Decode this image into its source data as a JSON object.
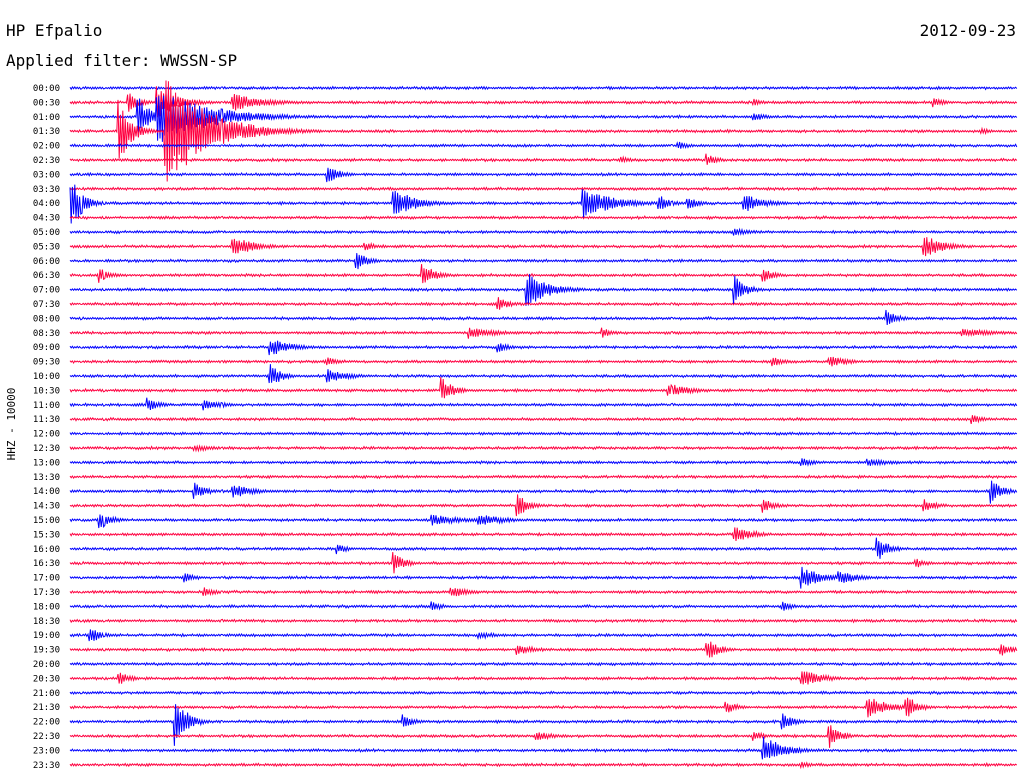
{
  "header": {
    "station": "HP Efpalio",
    "filter": "Applied filter: WWSSN-SP",
    "date": "2012-09-23"
  },
  "axis": {
    "label": "HHZ - 10000"
  },
  "colors": {
    "trace_a": "#0000ff",
    "trace_b": "#ff0040",
    "text": "#000000",
    "background": "#ffffff"
  },
  "chart_data": {
    "type": "line",
    "title": "HP Efpalio",
    "subtitle": "Applied filter: WWSSN-SP",
    "ylabel": "HHZ - 10000",
    "date": "2012-09-23",
    "row_colors": [
      "#0000ff",
      "#ff0040"
    ],
    "rows": [
      "00:00",
      "00:30",
      "01:00",
      "01:30",
      "02:00",
      "02:30",
      "03:00",
      "03:30",
      "04:00",
      "04:30",
      "05:00",
      "05:30",
      "06:00",
      "06:30",
      "07:00",
      "07:30",
      "08:00",
      "08:30",
      "09:00",
      "09:30",
      "10:00",
      "10:30",
      "11:00",
      "11:30",
      "12:00",
      "12:30",
      "13:00",
      "13:30",
      "14:00",
      "14:30",
      "15:00",
      "15:30",
      "16:00",
      "16:30",
      "17:00",
      "17:30",
      "18:00",
      "18:30",
      "19:00",
      "19:30",
      "20:00",
      "20:30",
      "21:00",
      "21:30",
      "22:00",
      "22:30",
      "23:00",
      "23:30"
    ],
    "events": [
      {
        "row": 1,
        "x": 0.06,
        "amp": 12,
        "dur": 0.01
      },
      {
        "row": 1,
        "x": 0.09,
        "amp": 18,
        "dur": 0.02
      },
      {
        "row": 1,
        "x": 0.17,
        "amp": 10,
        "dur": 0.03
      },
      {
        "row": 1,
        "x": 0.72,
        "amp": 4,
        "dur": 0.01
      },
      {
        "row": 1,
        "x": 0.91,
        "amp": 5,
        "dur": 0.01
      },
      {
        "row": 2,
        "x": 0.07,
        "amp": 25,
        "dur": 0.01
      },
      {
        "row": 2,
        "x": 0.09,
        "amp": 30,
        "dur": 0.05
      },
      {
        "row": 2,
        "x": 0.72,
        "amp": 6,
        "dur": 0.01
      },
      {
        "row": 3,
        "x": 0.05,
        "amp": 40,
        "dur": 0.01
      },
      {
        "row": 3,
        "x": 0.1,
        "amp": 60,
        "dur": 0.04
      },
      {
        "row": 3,
        "x": 0.96,
        "amp": 4,
        "dur": 0.01
      },
      {
        "row": 4,
        "x": 0.64,
        "amp": 5,
        "dur": 0.01
      },
      {
        "row": 5,
        "x": 0.67,
        "amp": 7,
        "dur": 0.01
      },
      {
        "row": 5,
        "x": 0.58,
        "amp": 4,
        "dur": 0.01
      },
      {
        "row": 6,
        "x": 0.27,
        "amp": 12,
        "dur": 0.01
      },
      {
        "row": 8,
        "x": 0.0,
        "amp": 30,
        "dur": 0.01
      },
      {
        "row": 8,
        "x": 0.34,
        "amp": 18,
        "dur": 0.02
      },
      {
        "row": 8,
        "x": 0.54,
        "amp": 16,
        "dur": 0.03
      },
      {
        "row": 8,
        "x": 0.62,
        "amp": 10,
        "dur": 0.01
      },
      {
        "row": 8,
        "x": 0.65,
        "amp": 8,
        "dur": 0.01
      },
      {
        "row": 8,
        "x": 0.71,
        "amp": 10,
        "dur": 0.02
      },
      {
        "row": 10,
        "x": 0.7,
        "amp": 4,
        "dur": 0.02
      },
      {
        "row": 11,
        "x": 0.17,
        "amp": 12,
        "dur": 0.02
      },
      {
        "row": 11,
        "x": 0.31,
        "amp": 5,
        "dur": 0.01
      },
      {
        "row": 11,
        "x": 0.9,
        "amp": 12,
        "dur": 0.02
      },
      {
        "row": 12,
        "x": 0.3,
        "amp": 12,
        "dur": 0.01
      },
      {
        "row": 13,
        "x": 0.03,
        "amp": 8,
        "dur": 0.01
      },
      {
        "row": 13,
        "x": 0.37,
        "amp": 16,
        "dur": 0.01
      },
      {
        "row": 13,
        "x": 0.73,
        "amp": 8,
        "dur": 0.01
      },
      {
        "row": 14,
        "x": 0.48,
        "amp": 20,
        "dur": 0.02
      },
      {
        "row": 14,
        "x": 0.7,
        "amp": 16,
        "dur": 0.01
      },
      {
        "row": 15,
        "x": 0.45,
        "amp": 8,
        "dur": 0.01
      },
      {
        "row": 16,
        "x": 0.86,
        "amp": 10,
        "dur": 0.01
      },
      {
        "row": 17,
        "x": 0.42,
        "amp": 6,
        "dur": 0.03
      },
      {
        "row": 17,
        "x": 0.56,
        "amp": 6,
        "dur": 0.01
      },
      {
        "row": 17,
        "x": 0.94,
        "amp": 4,
        "dur": 0.04
      },
      {
        "row": 18,
        "x": 0.21,
        "amp": 10,
        "dur": 0.02
      },
      {
        "row": 18,
        "x": 0.45,
        "amp": 6,
        "dur": 0.01
      },
      {
        "row": 19,
        "x": 0.27,
        "amp": 6,
        "dur": 0.01
      },
      {
        "row": 19,
        "x": 0.74,
        "amp": 6,
        "dur": 0.01
      },
      {
        "row": 19,
        "x": 0.8,
        "amp": 6,
        "dur": 0.02
      },
      {
        "row": 20,
        "x": 0.21,
        "amp": 14,
        "dur": 0.01
      },
      {
        "row": 20,
        "x": 0.27,
        "amp": 8,
        "dur": 0.02
      },
      {
        "row": 21,
        "x": 0.39,
        "amp": 16,
        "dur": 0.01
      },
      {
        "row": 21,
        "x": 0.63,
        "amp": 8,
        "dur": 0.02
      },
      {
        "row": 22,
        "x": 0.08,
        "amp": 8,
        "dur": 0.01
      },
      {
        "row": 22,
        "x": 0.14,
        "amp": 6,
        "dur": 0.02
      },
      {
        "row": 23,
        "x": 0.95,
        "amp": 6,
        "dur": 0.01
      },
      {
        "row": 25,
        "x": 0.13,
        "amp": 4,
        "dur": 0.02
      },
      {
        "row": 26,
        "x": 0.77,
        "amp": 6,
        "dur": 0.01
      },
      {
        "row": 26,
        "x": 0.84,
        "amp": 4,
        "dur": 0.03
      },
      {
        "row": 28,
        "x": 0.13,
        "amp": 10,
        "dur": 0.01
      },
      {
        "row": 28,
        "x": 0.17,
        "amp": 8,
        "dur": 0.02
      },
      {
        "row": 28,
        "x": 0.97,
        "amp": 14,
        "dur": 0.01
      },
      {
        "row": 29,
        "x": 0.47,
        "amp": 14,
        "dur": 0.01
      },
      {
        "row": 29,
        "x": 0.73,
        "amp": 8,
        "dur": 0.01
      },
      {
        "row": 29,
        "x": 0.9,
        "amp": 8,
        "dur": 0.01
      },
      {
        "row": 30,
        "x": 0.03,
        "amp": 12,
        "dur": 0.01
      },
      {
        "row": 30,
        "x": 0.38,
        "amp": 6,
        "dur": 0.03
      },
      {
        "row": 30,
        "x": 0.43,
        "amp": 6,
        "dur": 0.03
      },
      {
        "row": 31,
        "x": 0.7,
        "amp": 8,
        "dur": 0.02
      },
      {
        "row": 32,
        "x": 0.28,
        "amp": 6,
        "dur": 0.01
      },
      {
        "row": 32,
        "x": 0.85,
        "amp": 16,
        "dur": 0.01
      },
      {
        "row": 33,
        "x": 0.34,
        "amp": 12,
        "dur": 0.01
      },
      {
        "row": 33,
        "x": 0.89,
        "amp": 6,
        "dur": 0.01
      },
      {
        "row": 34,
        "x": 0.12,
        "amp": 6,
        "dur": 0.01
      },
      {
        "row": 34,
        "x": 0.77,
        "amp": 12,
        "dur": 0.02
      },
      {
        "row": 34,
        "x": 0.81,
        "amp": 8,
        "dur": 0.02
      },
      {
        "row": 35,
        "x": 0.14,
        "amp": 6,
        "dur": 0.01
      },
      {
        "row": 35,
        "x": 0.4,
        "amp": 6,
        "dur": 0.02
      },
      {
        "row": 36,
        "x": 0.38,
        "amp": 6,
        "dur": 0.01
      },
      {
        "row": 36,
        "x": 0.75,
        "amp": 6,
        "dur": 0.01
      },
      {
        "row": 38,
        "x": 0.02,
        "amp": 10,
        "dur": 0.01
      },
      {
        "row": 38,
        "x": 0.43,
        "amp": 4,
        "dur": 0.02
      },
      {
        "row": 39,
        "x": 0.47,
        "amp": 6,
        "dur": 0.02
      },
      {
        "row": 39,
        "x": 0.67,
        "amp": 14,
        "dur": 0.01
      },
      {
        "row": 39,
        "x": 0.98,
        "amp": 8,
        "dur": 0.01
      },
      {
        "row": 41,
        "x": 0.05,
        "amp": 8,
        "dur": 0.01
      },
      {
        "row": 41,
        "x": 0.77,
        "amp": 10,
        "dur": 0.02
      },
      {
        "row": 43,
        "x": 0.69,
        "amp": 8,
        "dur": 0.01
      },
      {
        "row": 43,
        "x": 0.84,
        "amp": 12,
        "dur": 0.02
      },
      {
        "row": 43,
        "x": 0.88,
        "amp": 16,
        "dur": 0.01
      },
      {
        "row": 44,
        "x": 0.11,
        "amp": 30,
        "dur": 0.01
      },
      {
        "row": 44,
        "x": 0.35,
        "amp": 8,
        "dur": 0.01
      },
      {
        "row": 44,
        "x": 0.75,
        "amp": 10,
        "dur": 0.01
      },
      {
        "row": 45,
        "x": 0.49,
        "amp": 5,
        "dur": 0.02
      },
      {
        "row": 45,
        "x": 0.72,
        "amp": 6,
        "dur": 0.01
      },
      {
        "row": 45,
        "x": 0.8,
        "amp": 14,
        "dur": 0.01
      },
      {
        "row": 46,
        "x": 0.73,
        "amp": 16,
        "dur": 0.02
      },
      {
        "row": 47,
        "x": 0.77,
        "amp": 4,
        "dur": 0.01
      }
    ]
  }
}
